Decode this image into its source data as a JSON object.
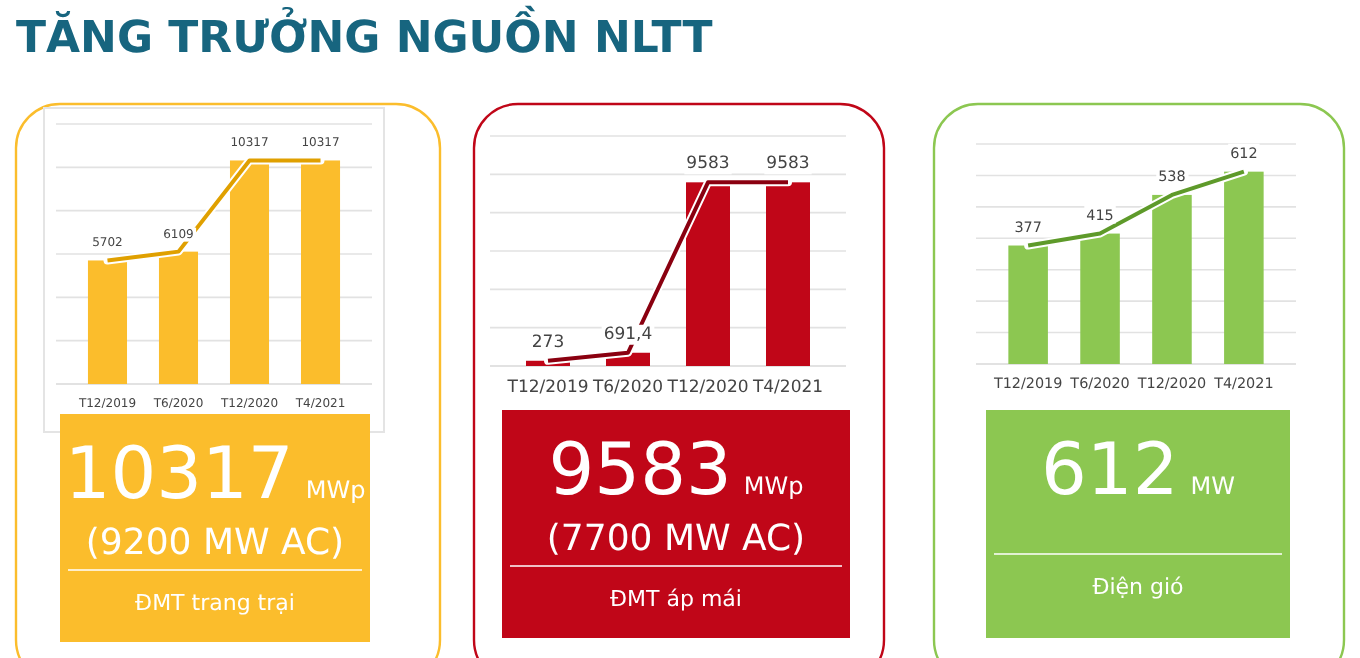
{
  "chart_data": [
    {
      "type": "bar",
      "title": "TĂNG TRƯỞNG NGUỒN NLTT",
      "categories": [
        "T12/2019",
        "T6/2020",
        "T12/2020",
        "T4/2021"
      ],
      "ylim": [
        0,
        12000
      ],
      "yticks": [
        {
          "value": 0,
          "label": null
        },
        {
          "value": 2000,
          "label": null
        },
        {
          "value": 4000,
          "label": null
        },
        {
          "value": 6000,
          "label": null
        },
        {
          "value": 8000,
          "label": null
        },
        {
          "value": 10000,
          "label": null
        },
        {
          "value": 12000,
          "label": null
        }
      ],
      "grid": "y",
      "tick_labels": "x",
      "series": [
        {
          "color": "#fbbd2c",
          "values": [
            5702,
            6109,
            10317,
            10317
          ],
          "value_labels": [
            "5702",
            "6109",
            "10317",
            "10317"
          ]
        },
        {
          "type": "line",
          "color": "#e0a000",
          "values": [
            5702,
            6109,
            10317,
            10317
          ]
        }
      ],
      "annotations": [
        "10317 MWp",
        "(9200 MW AC)",
        "ĐMT trang trại"
      ]
    },
    {
      "type": "bar",
      "categories": [
        "T12/2019",
        "T6/2020",
        "T12/2020",
        "T4/2021"
      ],
      "ylim": [
        0,
        12000
      ],
      "yticks": [
        {
          "value": 0,
          "label": null
        },
        {
          "value": 2000,
          "label": null
        },
        {
          "value": 4000,
          "label": null
        },
        {
          "value": 6000,
          "label": null
        },
        {
          "value": 8000,
          "label": null
        },
        {
          "value": 10000,
          "label": null
        },
        {
          "value": 12000,
          "label": null
        }
      ],
      "grid": "y",
      "tick_labels": "x",
      "series": [
        {
          "color": "#c00618",
          "values": [
            273,
            691.4,
            9583,
            9583
          ],
          "value_labels": [
            "273",
            "691,4",
            "9583",
            "9583"
          ]
        },
        {
          "type": "line",
          "color": "#8a0010",
          "values": [
            273,
            691.4,
            9583,
            9583
          ]
        }
      ],
      "annotations": [
        "9583 MWp",
        "(7700 MW AC)",
        "ĐMT áp mái"
      ]
    },
    {
      "type": "bar",
      "categories": [
        "T12/2019",
        "T6/2020",
        "T12/2020",
        "T4/2021"
      ],
      "ylim": [
        0,
        700
      ],
      "yticks": [
        {
          "value": 0,
          "label": null
        },
        {
          "value": 100,
          "label": null
        },
        {
          "value": 200,
          "label": null
        },
        {
          "value": 300,
          "label": null
        },
        {
          "value": 400,
          "label": null
        },
        {
          "value": 500,
          "label": null
        },
        {
          "value": 600,
          "label": null
        },
        {
          "value": 700,
          "label": null
        }
      ],
      "grid": "y",
      "tick_labels": "x",
      "series": [
        {
          "color": "#8cc751",
          "values": [
            377,
            415,
            538,
            612
          ],
          "value_labels": [
            "377",
            "415",
            "538",
            "612"
          ]
        },
        {
          "type": "line",
          "color": "#5e9a2a",
          "values": [
            377,
            415,
            538,
            612
          ]
        }
      ],
      "annotations": [
        "612 MW",
        "Điện gió"
      ]
    }
  ]
}
